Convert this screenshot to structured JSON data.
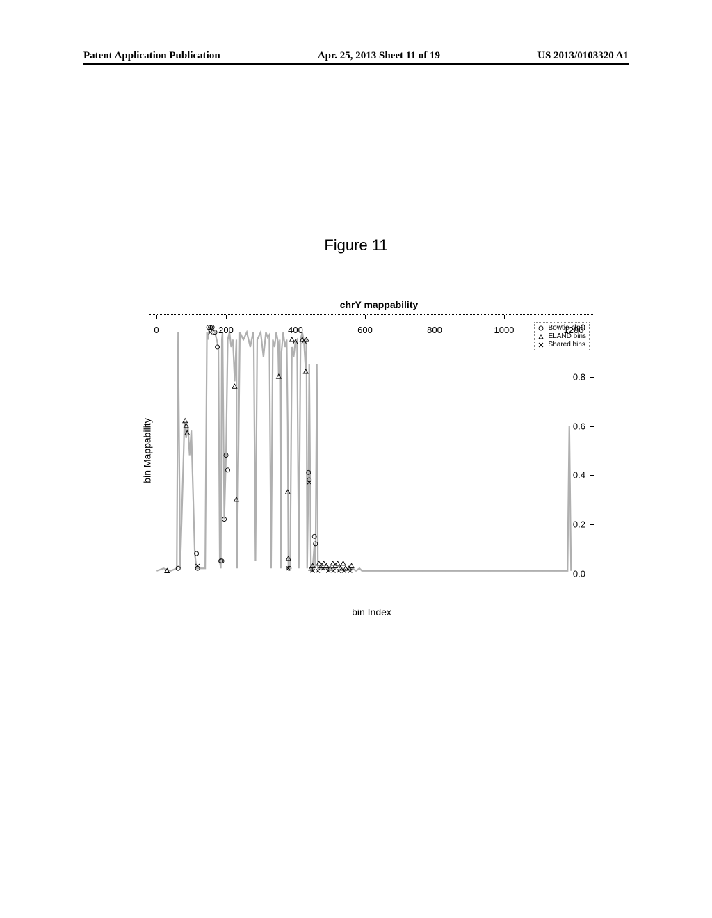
{
  "header": {
    "left": "Patent Application Publication",
    "center": "Apr. 25, 2013  Sheet 11 of 19",
    "right": "US 2013/0103320 A1"
  },
  "figure_label": "Figure 11",
  "chart": {
    "title": "chrY mappability",
    "xlabel": "bin Index",
    "ylabel": "bin Mappability",
    "xlim": [
      -20,
      1260
    ],
    "ylim": [
      -0.05,
      1.05
    ],
    "xticks": [
      0,
      200,
      400,
      600,
      800,
      1000,
      1200
    ],
    "yticks": [
      0.0,
      0.2,
      0.4,
      0.6,
      0.8,
      1.0
    ],
    "legend": {
      "items": [
        {
          "symbol": "circle",
          "label": "Bowtie bins"
        },
        {
          "symbol": "triangle",
          "label": "ELAND bins"
        },
        {
          "symbol": "x",
          "label": "Shared bins"
        }
      ]
    },
    "marker_color": "#000000",
    "marker_size": 4,
    "gray_color": "#b0b0b0",
    "gray_polyline": [
      [
        0,
        0.01
      ],
      [
        20,
        0.02
      ],
      [
        40,
        0.01
      ],
      [
        58,
        0.02
      ],
      [
        62,
        0.98
      ],
      [
        65,
        0.5
      ],
      [
        68,
        0.02
      ],
      [
        78,
        0.5
      ],
      [
        80,
        0.62
      ],
      [
        85,
        0.55
      ],
      [
        90,
        0.6
      ],
      [
        95,
        0.48
      ],
      [
        100,
        0.58
      ],
      [
        110,
        0.08
      ],
      [
        115,
        0.02
      ],
      [
        120,
        0.02
      ],
      [
        140,
        0.02
      ],
      [
        145,
        0.98
      ],
      [
        148,
        0.95
      ],
      [
        152,
        1.0
      ],
      [
        160,
        1.0
      ],
      [
        168,
        0.98
      ],
      [
        178,
        0.92
      ],
      [
        182,
        0.05
      ],
      [
        185,
        0.02
      ],
      [
        188,
        0.95
      ],
      [
        190,
        0.98
      ],
      [
        195,
        0.22
      ],
      [
        200,
        0.48
      ],
      [
        205,
        0.95
      ],
      [
        210,
        0.98
      ],
      [
        215,
        0.92
      ],
      [
        220,
        0.95
      ],
      [
        225,
        0.78
      ],
      [
        230,
        0.95
      ],
      [
        232,
        0.02
      ],
      [
        240,
        0.98
      ],
      [
        250,
        0.95
      ],
      [
        260,
        0.98
      ],
      [
        270,
        0.92
      ],
      [
        278,
        0.98
      ],
      [
        280,
        0.95
      ],
      [
        285,
        0.05
      ],
      [
        290,
        0.95
      ],
      [
        300,
        0.98
      ],
      [
        308,
        0.88
      ],
      [
        315,
        0.98
      ],
      [
        320,
        0.96
      ],
      [
        325,
        0.97
      ],
      [
        330,
        0.02
      ],
      [
        335,
        0.95
      ],
      [
        340,
        0.92
      ],
      [
        345,
        0.98
      ],
      [
        350,
        0.94
      ],
      [
        352,
        0.8
      ],
      [
        355,
        0.95
      ],
      [
        358,
        0.02
      ],
      [
        360,
        0.9
      ],
      [
        365,
        0.98
      ],
      [
        370,
        0.92
      ],
      [
        375,
        0.95
      ],
      [
        378,
        0.6
      ],
      [
        380,
        0.02
      ],
      [
        385,
        0.02
      ],
      [
        390,
        0.92
      ],
      [
        395,
        0.88
      ],
      [
        400,
        0.94
      ],
      [
        405,
        0.95
      ],
      [
        410,
        0.02
      ],
      [
        415,
        0.95
      ],
      [
        420,
        0.98
      ],
      [
        425,
        0.94
      ],
      [
        430,
        0.82
      ],
      [
        432,
        0.95
      ],
      [
        434,
        0.02
      ],
      [
        438,
        0.4
      ],
      [
        440,
        0.85
      ],
      [
        445,
        0.01
      ],
      [
        450,
        0.02
      ],
      [
        455,
        0.12
      ],
      [
        458,
        0.02
      ],
      [
        462,
        0.85
      ],
      [
        465,
        0.02
      ],
      [
        468,
        0.02
      ],
      [
        475,
        0.02
      ],
      [
        482,
        0.02
      ],
      [
        490,
        0.02
      ],
      [
        498,
        0.02
      ],
      [
        505,
        0.02
      ],
      [
        515,
        0.02
      ],
      [
        525,
        0.03
      ],
      [
        535,
        0.02
      ],
      [
        545,
        0.01
      ],
      [
        555,
        0.02
      ],
      [
        565,
        0.02
      ],
      [
        575,
        0.01
      ],
      [
        585,
        0.02
      ],
      [
        592,
        0.01
      ],
      [
        1185,
        0.01
      ],
      [
        1190,
        0.6
      ],
      [
        1195,
        0.01
      ]
    ],
    "dotted_hline_y": 0.01,
    "dotted_hline_x": [
      593,
      1183
    ],
    "bowtie_pts": [
      [
        150,
        1.0
      ],
      [
        155,
        1.0
      ],
      [
        160,
        1.0
      ],
      [
        168,
        0.98
      ],
      [
        175,
        0.92
      ],
      [
        115,
        0.08
      ],
      [
        118,
        0.02
      ],
      [
        195,
        0.22
      ],
      [
        200,
        0.48
      ],
      [
        205,
        0.42
      ],
      [
        185,
        0.05
      ],
      [
        188,
        0.05
      ],
      [
        438,
        0.41
      ],
      [
        440,
        0.38
      ],
      [
        455,
        0.15
      ],
      [
        458,
        0.12
      ],
      [
        62,
        0.02
      ],
      [
        382,
        0.02
      ]
    ],
    "eland_pts": [
      [
        30,
        0.01
      ],
      [
        82,
        0.62
      ],
      [
        85,
        0.6
      ],
      [
        88,
        0.57
      ],
      [
        225,
        0.76
      ],
      [
        230,
        0.3
      ],
      [
        352,
        0.8
      ],
      [
        378,
        0.33
      ],
      [
        380,
        0.06
      ],
      [
        390,
        0.95
      ],
      [
        400,
        0.94
      ],
      [
        420,
        0.95
      ],
      [
        425,
        0.94
      ],
      [
        430,
        0.82
      ],
      [
        432,
        0.95
      ],
      [
        445,
        0.02
      ],
      [
        450,
        0.03
      ],
      [
        468,
        0.04
      ],
      [
        475,
        0.03
      ],
      [
        482,
        0.04
      ],
      [
        490,
        0.03
      ],
      [
        500,
        0.02
      ],
      [
        508,
        0.04
      ],
      [
        515,
        0.03
      ],
      [
        522,
        0.04
      ],
      [
        530,
        0.02
      ],
      [
        538,
        0.04
      ],
      [
        545,
        0.02
      ],
      [
        555,
        0.02
      ],
      [
        562,
        0.03
      ]
    ],
    "shared_pts": [
      [
        155,
        0.98
      ],
      [
        440,
        0.37
      ],
      [
        118,
        0.03
      ],
      [
        380,
        0.02
      ],
      [
        450,
        0.01
      ],
      [
        465,
        0.01
      ],
      [
        480,
        0.02
      ],
      [
        495,
        0.01
      ],
      [
        510,
        0.01
      ],
      [
        525,
        0.01
      ],
      [
        540,
        0.01
      ],
      [
        558,
        0.01
      ]
    ]
  }
}
